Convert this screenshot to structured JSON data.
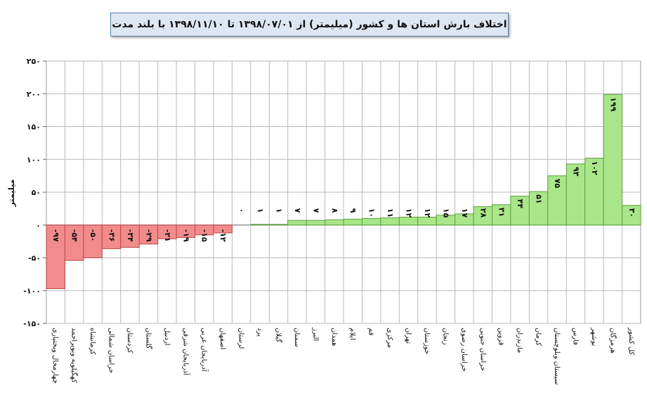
{
  "chart_data": {
    "type": "bar",
    "title": "اختلاف بارش استان ها و کشور (میلیمتر) از ۱۳۹۸/۰۷/۰۱ تا ۱۳۹۸/۱۱/۱۰ با بلند مدت",
    "ylabel": "میلیمتر",
    "xlabel": "",
    "ylim": [
      -150,
      250
    ],
    "yticks": [
      -150,
      -100,
      -50,
      0,
      50,
      100,
      150,
      200,
      250
    ],
    "ytick_labels": [
      "-۱۵۰",
      "-۱۰۰",
      "-۵۰",
      "۰",
      "۵۰",
      "۱۰۰",
      "۱۵۰",
      "۲۰۰",
      "۲۵۰"
    ],
    "grid": true,
    "legend": "none",
    "colors": {
      "negative": "#f28c8c",
      "positive": "#a9e68a",
      "negative_border": "#b84646",
      "positive_border": "#5e9e3a"
    },
    "categories": [
      "چهارمحال وبختیاری",
      "کهگیلویه وبویراحمد",
      "کرمانشاه",
      "خراسان شمالی",
      "کردستان",
      "گلستان",
      "اردبیل",
      "آذربایجان شرقی",
      "آذربایجان غربی",
      "اصفهان",
      "لرستان",
      "یزد",
      "گیلان",
      "سمنان",
      "البرز",
      "همدان",
      "ایلام",
      "قم",
      "مرکزی",
      "تهران",
      "خوزستان",
      "زنجان",
      "خراسان رضوی",
      "خراسان جنوبی",
      "قزوین",
      "مازندران",
      "کرمان",
      "سیستان وبلوچستان",
      "فارس",
      "بوشهر",
      "هرمزگان",
      "کل کشور"
    ],
    "values": [
      -97,
      -54,
      -50,
      -36,
      -34,
      -29,
      -21,
      -19,
      -15,
      -12,
      0,
      1,
      1,
      7,
      7,
      8,
      9,
      10,
      11,
      12,
      12,
      15,
      17,
      28,
      31,
      44,
      51,
      75,
      93,
      102,
      199,
      30
    ],
    "value_labels": [
      "-۹۷",
      "-۵۴",
      "-۵۰",
      "-۳۶",
      "-۳۴",
      "-۲۹",
      "-۲۱",
      "-۱۹",
      "-۱۵",
      "-۱۲",
      "۰",
      "۱",
      "۱",
      "۷",
      "۷",
      "۸",
      "۹",
      "۱۰",
      "۱۱",
      "۱۲",
      "۱۲",
      "۱۵",
      "۱۷",
      "۲۸",
      "۳۱",
      "۴۴",
      "۵۱",
      "۷۵",
      "۹۳",
      "۱۰۲",
      "۱۹۹",
      "۳۰"
    ]
  }
}
